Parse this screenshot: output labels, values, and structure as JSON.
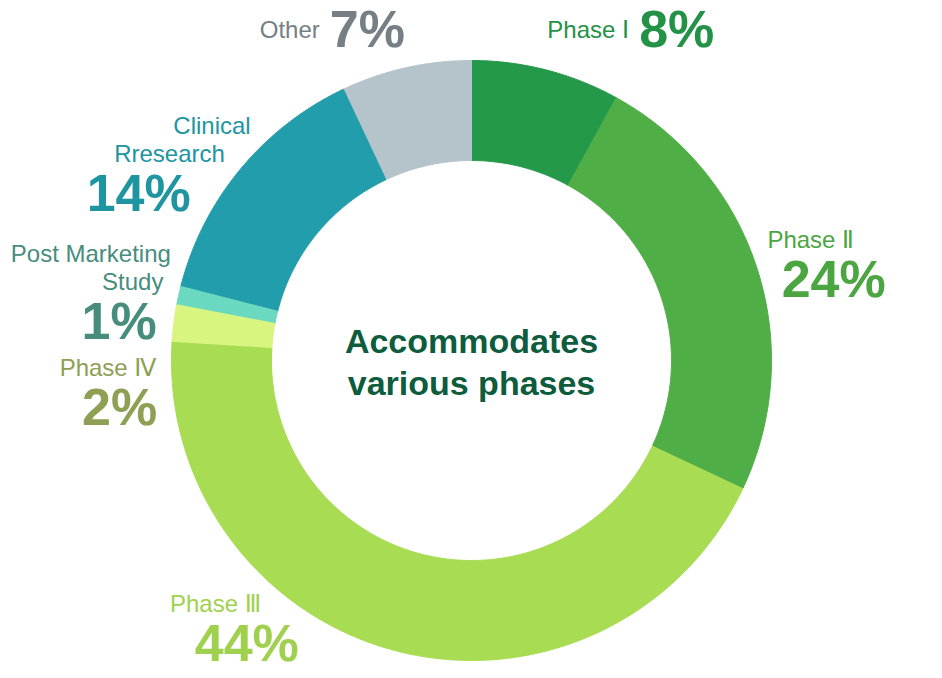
{
  "chart_data": {
    "type": "donut",
    "title": "Accommodates various phases",
    "categories": [
      "Phase Ⅰ",
      "Phase Ⅱ",
      "Phase Ⅲ",
      "Phase Ⅳ",
      "Post Marketing Study",
      "Clinical Rresearch",
      "Other"
    ],
    "values": [
      8,
      24,
      44,
      2,
      1,
      14,
      7
    ],
    "value_labels": [
      "8%",
      "24%",
      "44%",
      "2%",
      "1%",
      "14%",
      "7%"
    ],
    "colors": [
      "#25994a",
      "#4fae45",
      "#a8dc52",
      "#d8f57f",
      "#6bd9c0",
      "#229dab",
      "#b5c3cb"
    ],
    "data_labels": true
  }
}
